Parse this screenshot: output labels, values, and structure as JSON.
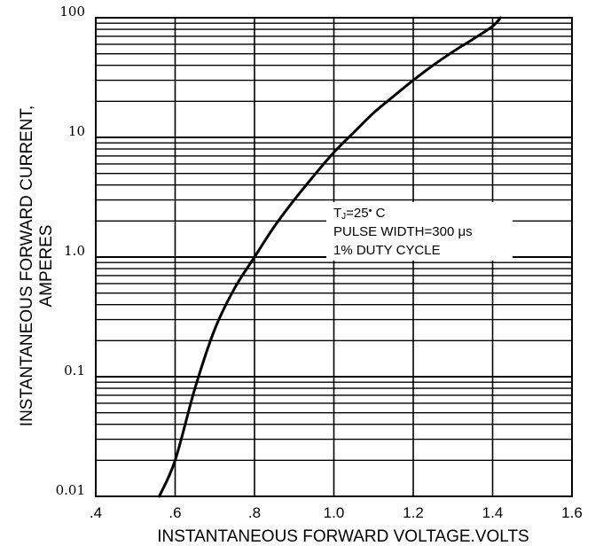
{
  "chart_data": {
    "type": "line",
    "xlabel": "INSTANTANEOUS FORWARD VOLTAGE.VOLTS",
    "ylabel_lines": [
      "INSTANTANEOUS FORWARD CURRENT,",
      "AMPERES"
    ],
    "x_scale": "linear",
    "y_scale": "log",
    "xlim": [
      0.4,
      1.6
    ],
    "ylim": [
      0.01,
      100
    ],
    "x_ticks": [
      0.4,
      0.6,
      0.8,
      1.0,
      1.2,
      1.4,
      1.6
    ],
    "x_tick_labels": [
      ".4",
      ".6",
      ".8",
      "1.0",
      "1.2",
      "1.4",
      "1.6"
    ],
    "y_ticks": [
      0.01,
      0.1,
      1,
      10,
      100
    ],
    "y_tick_labels": [
      "0.01",
      "0.1",
      "1.0",
      "10",
      "100"
    ],
    "grid": true,
    "series": [
      {
        "x": [
          0.56,
          0.6,
          0.65,
          0.7,
          0.75,
          0.8,
          0.85,
          0.9,
          0.95,
          1.0,
          1.05,
          1.1,
          1.15,
          1.2,
          1.25,
          1.3,
          1.35,
          1.4,
          1.42
        ],
        "y": [
          0.01,
          0.02,
          0.08,
          0.25,
          0.55,
          1.0,
          1.8,
          3.0,
          4.8,
          7.5,
          11,
          16,
          22,
          30,
          40,
          52,
          66,
          85,
          100
        ],
        "color": "#000000"
      }
    ],
    "annotations": [
      {
        "text": "TJ=25° C"
      },
      {
        "text": "PULSE WIDTH=300 μs"
      },
      {
        "text": "1% DUTY CYCLE"
      }
    ]
  }
}
